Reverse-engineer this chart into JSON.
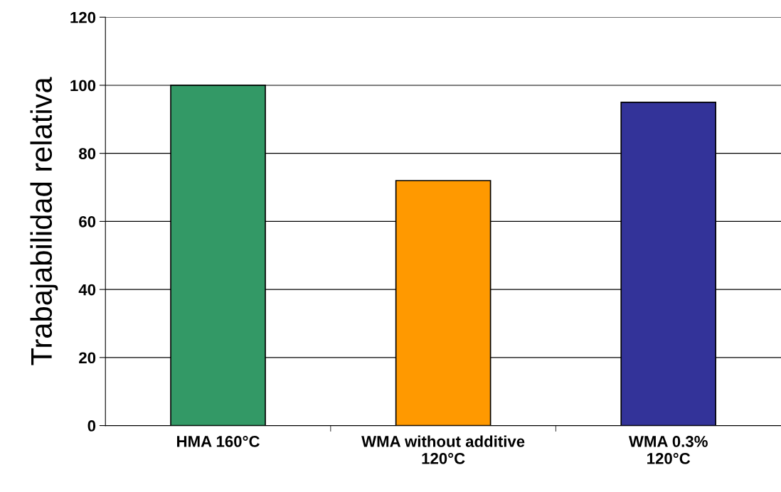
{
  "chart_data": {
    "type": "bar",
    "ylabel": "Trabajabilidad relativa",
    "categories": [
      "HMA 160°C",
      "WMA without additive\n120°C",
      "WMA 0.3%\n120°C"
    ],
    "values": [
      100,
      72,
      95
    ],
    "colors": [
      "#339966",
      "#ff9900",
      "#333399"
    ],
    "ylim": [
      0,
      120
    ],
    "yticks": [
      0,
      20,
      40,
      60,
      80,
      100,
      120
    ],
    "grid": "y"
  }
}
